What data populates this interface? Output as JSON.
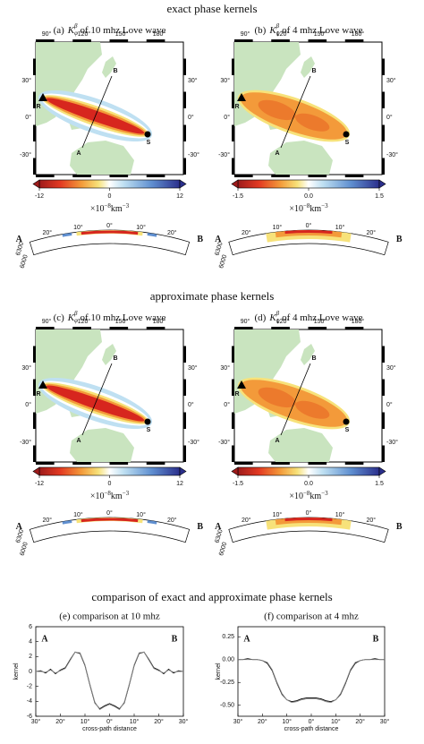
{
  "sections": [
    {
      "title": "exact phase kernels",
      "panels": [
        {
          "label": "(a)",
          "symbol": "K",
          "sub": "φ",
          "sup": "β",
          "text": "of 10 mhz Love wave",
          "colorbar": {
            "range": [
              -12,
              12
            ],
            "ticks": [
              -12,
              0,
              12
            ]
          }
        },
        {
          "label": "(b)",
          "symbol": "K",
          "sub": "φ",
          "sup": "β",
          "text": "of 4 mhz Love wave",
          "colorbar": {
            "range": [
              -1.5,
              1.5
            ],
            "ticks": [
              -1.5,
              {
                "value": 0,
                "label": "0.0"
              },
              1.5
            ]
          }
        }
      ]
    },
    {
      "title": "approximate phase kernels",
      "panels": [
        {
          "label": "(c)",
          "symbol": "K",
          "sub": "φ",
          "sup": "β",
          "text": "of 10 mhz Love wave",
          "colorbar": {
            "range": [
              -12,
              12
            ],
            "ticks": [
              -12,
              0,
              12
            ]
          }
        },
        {
          "label": "(d)",
          "symbol": "K",
          "sub": "φ",
          "sup": "β",
          "text": "of 4 mhz Love wave",
          "colorbar": {
            "range": [
              -1.5,
              1.5
            ],
            "ticks": [
              -1.5,
              {
                "value": 0,
                "label": "0.0"
              },
              1.5
            ]
          }
        }
      ]
    }
  ],
  "map": {
    "lon_labels": [
      "90°",
      "120°",
      "150°",
      "180°"
    ],
    "lat_labels": [
      "30°",
      "0°",
      "-30°"
    ],
    "receiver": "R",
    "source": "S",
    "a": "A",
    "b": "B"
  },
  "colorbar_unit": {
    "base": "×10",
    "exp": "−8",
    "unit": "km",
    "unit_exp": "−3"
  },
  "cross_section": {
    "distance_labels": [
      "20°",
      "10°",
      "0°",
      "10°",
      "20°"
    ],
    "radius_labels": [
      "6300",
      "6000"
    ],
    "a": "A",
    "b": "B"
  },
  "comparison_title": "comparison of exact and approximate phase kernels",
  "chart_data": [
    {
      "type": "line",
      "title": "(e) comparison at 10 mhz",
      "xlabel": "cross-path distance",
      "ylabel": "kernel",
      "annotations": [
        "A",
        "B"
      ],
      "x": [
        -30,
        -28,
        -26,
        -24,
        -22,
        -20,
        -18,
        -16,
        -14,
        -12,
        -10,
        -8,
        -6,
        -4,
        -2,
        0,
        2,
        4,
        6,
        8,
        10,
        12,
        14,
        16,
        18,
        20,
        22,
        24,
        26,
        28,
        30
      ],
      "series": [
        {
          "color": "#000000",
          "values": [
            0,
            0.1,
            -0.2,
            0.3,
            -0.3,
            0.2,
            0.5,
            1.6,
            2.6,
            2.4,
            0.8,
            -1.8,
            -4.2,
            -5.0,
            -4.6,
            -4.3,
            -4.6,
            -5.0,
            -4.2,
            -1.8,
            0.8,
            2.4,
            2.6,
            1.6,
            0.5,
            0.2,
            -0.3,
            0.3,
            -0.2,
            0.1,
            0
          ]
        },
        {
          "color": "#888888",
          "values": [
            0,
            0,
            -0.1,
            0.2,
            -0.2,
            0.1,
            0.4,
            1.5,
            2.6,
            2.5,
            0.9,
            -1.7,
            -4.1,
            -5.1,
            -4.7,
            -4.4,
            -4.7,
            -5.1,
            -4.1,
            -1.7,
            0.9,
            2.5,
            2.6,
            1.5,
            0.4,
            0.1,
            -0.2,
            0.2,
            -0.1,
            0,
            0
          ]
        }
      ],
      "xlim": [
        -30,
        30
      ],
      "xticks": [
        {
          "value": -30,
          "label": "30°"
        },
        {
          "value": -20,
          "label": "20°"
        },
        {
          "value": -10,
          "label": "10°"
        },
        {
          "value": 0,
          "label": "0°"
        },
        {
          "value": 10,
          "label": "10°"
        },
        {
          "value": 20,
          "label": "20°"
        },
        {
          "value": 30,
          "label": "30°"
        }
      ],
      "ylim": [
        -6,
        6
      ],
      "yticks": [
        -6,
        -4,
        -2,
        0,
        2,
        4,
        6
      ]
    },
    {
      "type": "line",
      "title": "(f) comparison at 4 mhz",
      "xlabel": "cross-path distance",
      "ylabel": "kernel",
      "annotations": [
        "A",
        "B"
      ],
      "x": [
        -30,
        -28,
        -26,
        -24,
        -22,
        -20,
        -18,
        -16,
        -14,
        -12,
        -10,
        -8,
        -6,
        -4,
        -2,
        0,
        2,
        4,
        6,
        8,
        10,
        12,
        14,
        16,
        18,
        20,
        22,
        24,
        26,
        28,
        30
      ],
      "series": [
        {
          "color": "#000000",
          "values": [
            0,
            0,
            0.01,
            0,
            0,
            -0.01,
            -0.04,
            -0.12,
            -0.26,
            -0.38,
            -0.44,
            -0.46,
            -0.45,
            -0.43,
            -0.42,
            -0.42,
            -0.42,
            -0.43,
            -0.45,
            -0.46,
            -0.44,
            -0.38,
            -0.26,
            -0.12,
            -0.04,
            -0.01,
            0,
            0,
            0.01,
            0,
            0
          ]
        },
        {
          "color": "#888888",
          "values": [
            0,
            0,
            0,
            0,
            0,
            -0.01,
            -0.03,
            -0.11,
            -0.25,
            -0.37,
            -0.44,
            -0.47,
            -0.46,
            -0.44,
            -0.43,
            -0.43,
            -0.43,
            -0.44,
            -0.46,
            -0.47,
            -0.44,
            -0.37,
            -0.25,
            -0.11,
            -0.03,
            -0.01,
            0,
            0,
            0,
            0,
            0
          ]
        }
      ],
      "xlim": [
        -30,
        30
      ],
      "xticks": [
        {
          "value": -30,
          "label": "30°"
        },
        {
          "value": -20,
          "label": "20°"
        },
        {
          "value": -10,
          "label": "10°"
        },
        {
          "value": 0,
          "label": "0°"
        },
        {
          "value": 10,
          "label": "10°"
        },
        {
          "value": 20,
          "label": "20°"
        },
        {
          "value": 30,
          "label": "30°"
        }
      ],
      "ylim": [
        -0.62,
        0.36
      ],
      "yticks": [
        {
          "value": -0.5,
          "label": "-0.50"
        },
        -0.25,
        {
          "value": 0,
          "label": "0.00"
        },
        0.25
      ]
    }
  ]
}
